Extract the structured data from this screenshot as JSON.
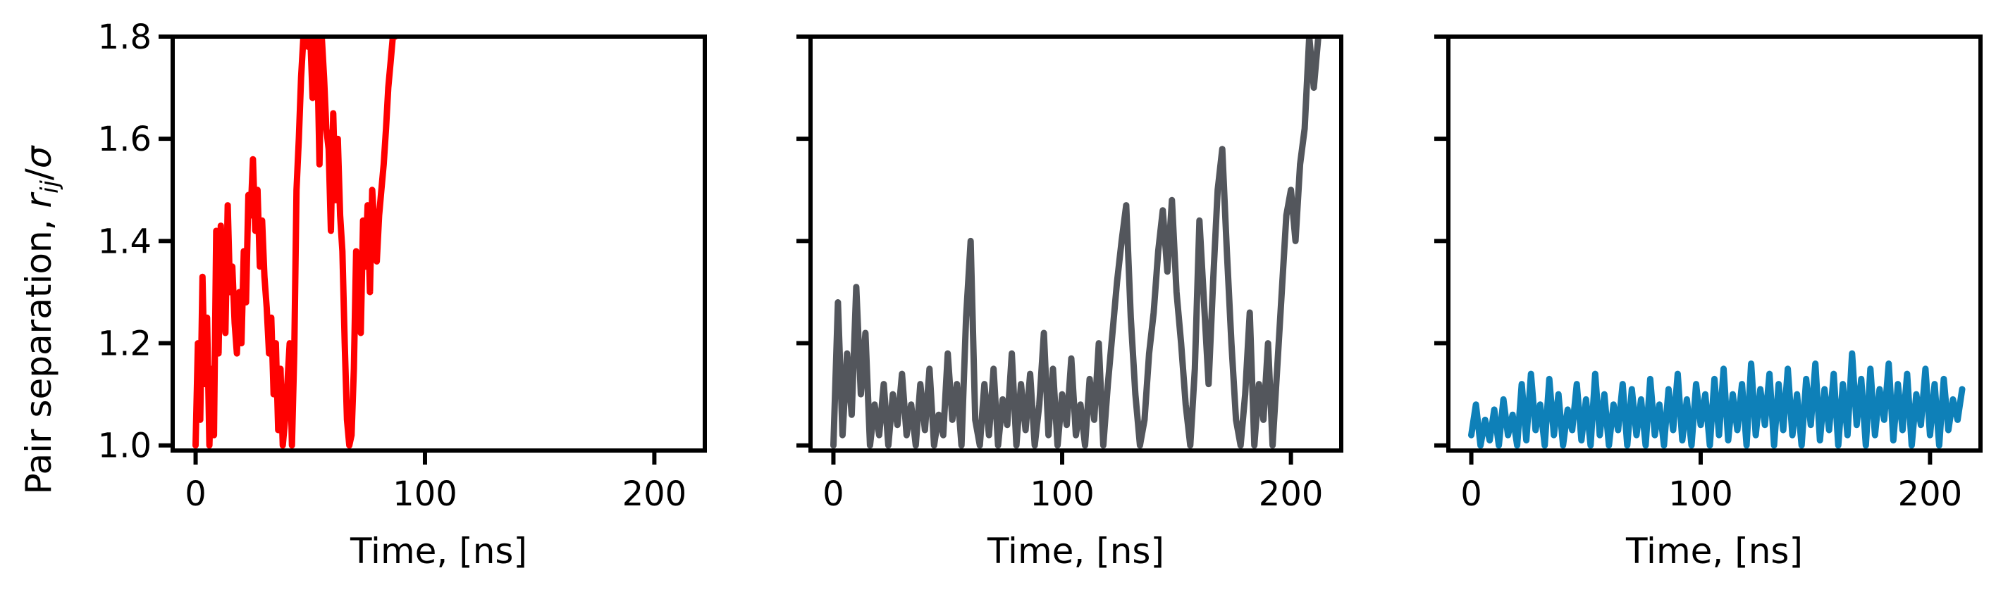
{
  "chart_data": [
    {
      "type": "line",
      "xlabel": "Time, [ns]",
      "ylabel": "Pair separation, r_ij/σ",
      "xlim": [
        -10,
        222
      ],
      "ylim": [
        0.99,
        1.8
      ],
      "xticks": [
        0,
        100,
        200
      ],
      "yticks": [
        1.0,
        1.2,
        1.4,
        1.6,
        1.8
      ],
      "xtick_labels": [
        "0",
        "100",
        "200"
      ],
      "ytick_labels": [
        "1.0",
        "1.2",
        "1.4",
        "1.6",
        "1.8"
      ],
      "grid": false,
      "series": [
        {
          "color": "#ff0000",
          "x": [
            0,
            1,
            2,
            3,
            4,
            5,
            6,
            7,
            8,
            9,
            10,
            11,
            12,
            13,
            14,
            15,
            16,
            17,
            18,
            19,
            20,
            21,
            22,
            23,
            24,
            25,
            26,
            27,
            28,
            29,
            30,
            31,
            32,
            33,
            34,
            35,
            36,
            37,
            38,
            39,
            40,
            41,
            42,
            43,
            44,
            45,
            46,
            47,
            48,
            49,
            50,
            51,
            52,
            53,
            54,
            55,
            56,
            57,
            58,
            59,
            60,
            61,
            62,
            63,
            64,
            65,
            66,
            67,
            68,
            69,
            70,
            71,
            72,
            73,
            74,
            75,
            76,
            77,
            78,
            79,
            80,
            81,
            82,
            83,
            84,
            85,
            86,
            87
          ],
          "y": [
            1.0,
            1.2,
            1.05,
            1.33,
            1.12,
            1.25,
            1.0,
            1.15,
            1.02,
            1.42,
            1.18,
            1.43,
            1.3,
            1.22,
            1.47,
            1.3,
            1.35,
            1.24,
            1.18,
            1.3,
            1.2,
            1.38,
            1.28,
            1.49,
            1.45,
            1.56,
            1.42,
            1.5,
            1.35,
            1.44,
            1.33,
            1.27,
            1.18,
            1.25,
            1.1,
            1.2,
            1.03,
            1.15,
            1.0,
            1.05,
            1.12,
            1.2,
            1.0,
            1.18,
            1.5,
            1.6,
            1.72,
            1.8,
            1.8,
            1.78,
            1.8,
            1.68,
            1.8,
            1.78,
            1.55,
            1.8,
            1.72,
            1.62,
            1.58,
            1.42,
            1.65,
            1.48,
            1.6,
            1.45,
            1.38,
            1.2,
            1.05,
            1.0,
            1.02,
            1.15,
            1.38,
            1.3,
            1.22,
            1.44,
            1.35,
            1.47,
            1.3,
            1.5,
            1.42,
            1.36,
            1.45,
            1.5,
            1.55,
            1.62,
            1.7,
            1.75,
            1.8,
            1.8
          ]
        }
      ]
    },
    {
      "type": "line",
      "xlabel": "Time, [ns]",
      "ylabel": "",
      "xlim": [
        -10,
        222
      ],
      "ylim": [
        0.99,
        1.8
      ],
      "xticks": [
        0,
        100,
        200
      ],
      "xtick_labels": [
        "0",
        "100",
        "200"
      ],
      "grid": false,
      "series": [
        {
          "color": "#53565c",
          "x": [
            0,
            2,
            4,
            6,
            8,
            10,
            12,
            14,
            16,
            18,
            20,
            22,
            24,
            26,
            28,
            30,
            32,
            34,
            36,
            38,
            40,
            42,
            44,
            46,
            48,
            50,
            52,
            54,
            56,
            58,
            60,
            62,
            64,
            66,
            68,
            70,
            72,
            74,
            76,
            78,
            80,
            82,
            84,
            86,
            88,
            90,
            92,
            94,
            96,
            98,
            100,
            102,
            104,
            106,
            108,
            110,
            112,
            114,
            116,
            118,
            120,
            122,
            124,
            126,
            128,
            130,
            132,
            134,
            136,
            138,
            140,
            142,
            144,
            146,
            148,
            150,
            152,
            154,
            156,
            158,
            160,
            162,
            164,
            166,
            168,
            170,
            172,
            174,
            176,
            178,
            180,
            182,
            184,
            186,
            188,
            190,
            192,
            194,
            196,
            198,
            200,
            202,
            204,
            206,
            208,
            210,
            212
          ],
          "y": [
            1.0,
            1.28,
            1.02,
            1.18,
            1.06,
            1.31,
            1.1,
            1.22,
            1.0,
            1.08,
            1.02,
            1.12,
            1.0,
            1.1,
            1.04,
            1.14,
            1.02,
            1.08,
            1.0,
            1.12,
            1.03,
            1.15,
            1.0,
            1.06,
            1.02,
            1.18,
            1.05,
            1.12,
            1.0,
            1.25,
            1.4,
            1.05,
            1.0,
            1.12,
            1.02,
            1.15,
            1.0,
            1.09,
            1.04,
            1.18,
            1.0,
            1.12,
            1.03,
            1.14,
            1.0,
            1.08,
            1.22,
            1.02,
            1.15,
            1.0,
            1.1,
            1.04,
            1.17,
            1.02,
            1.08,
            1.0,
            1.13,
            1.05,
            1.2,
            1.0,
            1.12,
            1.22,
            1.32,
            1.4,
            1.47,
            1.25,
            1.1,
            1.0,
            1.05,
            1.18,
            1.26,
            1.38,
            1.46,
            1.34,
            1.48,
            1.3,
            1.2,
            1.08,
            1.0,
            1.15,
            1.44,
            1.28,
            1.12,
            1.32,
            1.5,
            1.58,
            1.38,
            1.2,
            1.05,
            1.0,
            1.1,
            1.26,
            1.0,
            1.12,
            1.05,
            1.2,
            1.0,
            1.15,
            1.3,
            1.45,
            1.5,
            1.4,
            1.55,
            1.62,
            1.8,
            1.7,
            1.8
          ]
        }
      ]
    },
    {
      "type": "line",
      "xlabel": "Time, [ns]",
      "ylabel": "",
      "xlim": [
        -10,
        222
      ],
      "ylim": [
        0.99,
        1.8
      ],
      "xticks": [
        0,
        100,
        200
      ],
      "xtick_labels": [
        "0",
        "100",
        "200"
      ],
      "grid": false,
      "series": [
        {
          "color": "#0e80b8",
          "x": [
            0,
            2,
            4,
            6,
            8,
            10,
            12,
            14,
            16,
            18,
            20,
            22,
            24,
            26,
            28,
            30,
            32,
            34,
            36,
            38,
            40,
            42,
            44,
            46,
            48,
            50,
            52,
            54,
            56,
            58,
            60,
            62,
            64,
            66,
            68,
            70,
            72,
            74,
            76,
            78,
            80,
            82,
            84,
            86,
            88,
            90,
            92,
            94,
            96,
            98,
            100,
            102,
            104,
            106,
            108,
            110,
            112,
            114,
            116,
            118,
            120,
            122,
            124,
            126,
            128,
            130,
            132,
            134,
            136,
            138,
            140,
            142,
            144,
            146,
            148,
            150,
            152,
            154,
            156,
            158,
            160,
            162,
            164,
            166,
            168,
            170,
            172,
            174,
            176,
            178,
            180,
            182,
            184,
            186,
            188,
            190,
            192,
            194,
            196,
            198,
            200,
            202,
            204,
            206,
            208,
            210,
            212,
            214
          ],
          "y": [
            1.02,
            1.08,
            1.0,
            1.05,
            1.01,
            1.07,
            1.0,
            1.09,
            1.02,
            1.06,
            1.0,
            1.12,
            1.01,
            1.14,
            1.03,
            1.08,
            1.0,
            1.13,
            1.02,
            1.1,
            1.0,
            1.07,
            1.03,
            1.12,
            1.01,
            1.09,
            1.0,
            1.14,
            1.02,
            1.1,
            1.0,
            1.08,
            1.03,
            1.12,
            1.0,
            1.11,
            1.02,
            1.09,
            1.0,
            1.13,
            1.02,
            1.08,
            1.0,
            1.11,
            1.03,
            1.14,
            1.01,
            1.09,
            1.0,
            1.12,
            1.04,
            1.1,
            1.0,
            1.13,
            1.02,
            1.15,
            1.01,
            1.1,
            1.03,
            1.12,
            1.0,
            1.16,
            1.02,
            1.11,
            1.04,
            1.14,
            1.0,
            1.12,
            1.03,
            1.15,
            1.02,
            1.1,
            1.0,
            1.13,
            1.04,
            1.16,
            1.01,
            1.11,
            1.03,
            1.14,
            1.0,
            1.12,
            1.02,
            1.18,
            1.04,
            1.13,
            1.0,
            1.15,
            1.02,
            1.11,
            1.05,
            1.16,
            1.01,
            1.12,
            1.03,
            1.14,
            1.0,
            1.1,
            1.04,
            1.15,
            1.02,
            1.12,
            1.0,
            1.13,
            1.03,
            1.09,
            1.05,
            1.11
          ]
        }
      ]
    }
  ]
}
